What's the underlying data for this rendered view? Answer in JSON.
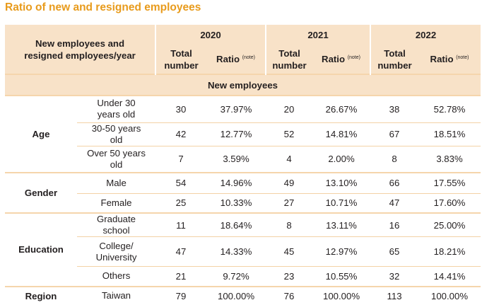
{
  "title": "Ratio of new and resigned employees",
  "header": {
    "corner": "New employees and resigned employees/year",
    "years": [
      "2020",
      "2021",
      "2022"
    ],
    "total_label": "Total number",
    "ratio_label": "Ratio",
    "note_label": "(note)"
  },
  "section_label": "New employees",
  "groups": [
    {
      "category": "Age",
      "rows": [
        {
          "label": "Under 30 years old",
          "values": [
            "30",
            "37.97%",
            "20",
            "26.67%",
            "38",
            "52.78%"
          ]
        },
        {
          "label": "30-50 years old",
          "values": [
            "42",
            "12.77%",
            "52",
            "14.81%",
            "67",
            "18.51%"
          ]
        },
        {
          "label": "Over 50 years old",
          "values": [
            "7",
            "3.59%",
            "4",
            "2.00%",
            "8",
            "3.83%"
          ]
        }
      ]
    },
    {
      "category": "Gender",
      "rows": [
        {
          "label": "Male",
          "values": [
            "54",
            "14.96%",
            "49",
            "13.10%",
            "66",
            "17.55%"
          ]
        },
        {
          "label": "Female",
          "values": [
            "25",
            "10.33%",
            "27",
            "10.71%",
            "47",
            "17.60%"
          ]
        }
      ]
    },
    {
      "category": "Education",
      "rows": [
        {
          "label": "Graduate school",
          "values": [
            "11",
            "18.64%",
            "8",
            "13.11%",
            "16",
            "25.00%"
          ]
        },
        {
          "label": "College/ University",
          "values": [
            "47",
            "14.33%",
            "45",
            "12.97%",
            "65",
            "18.21%"
          ]
        },
        {
          "label": "Others",
          "values": [
            "21",
            "9.72%",
            "23",
            "10.55%",
            "32",
            "14.41%"
          ]
        }
      ]
    },
    {
      "category": "Region",
      "rows": [
        {
          "label": "Taiwan",
          "values": [
            "79",
            "100.00%",
            "76",
            "100.00%",
            "113",
            "100.00%"
          ]
        }
      ]
    }
  ],
  "colors": {
    "title": "#e89b1c",
    "header_bg": "#f8e2c8",
    "border": "#f3d2a6"
  }
}
